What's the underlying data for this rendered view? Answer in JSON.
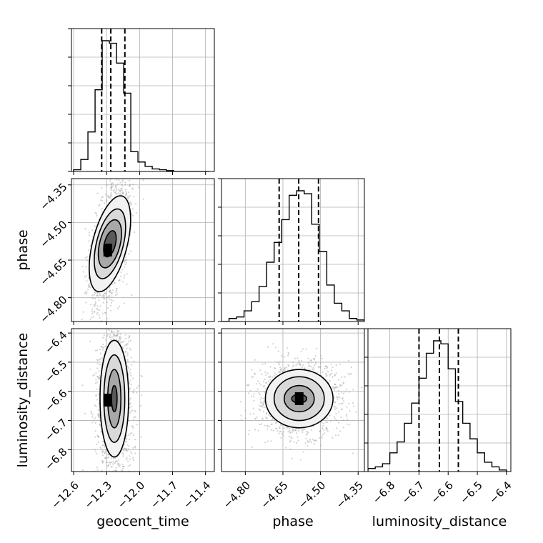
{
  "chart_data": {
    "type": "corner",
    "parameters": [
      "geocent_time",
      "phase",
      "luminosity_distance"
    ],
    "xlabels": [
      "geocent_time",
      "phase",
      "luminosity_distance"
    ],
    "ylabels": [
      "",
      "phase",
      "luminosity_distance"
    ],
    "ranges": [
      [
        -12.62,
        -11.32
      ],
      [
        -4.895,
        -4.325
      ],
      [
        -6.875,
        -6.385
      ]
    ],
    "ticks": [
      [
        -12.6,
        -12.3,
        -12.0,
        -11.7,
        -11.4
      ],
      [
        -4.8,
        -4.65,
        -4.5,
        -4.35
      ],
      [
        -6.8,
        -6.7,
        -6.6,
        -6.5,
        -6.4
      ]
    ],
    "tick_labels": [
      [
        "−12.6",
        "−12.3",
        "−12.0",
        "−11.7",
        "−11.4"
      ],
      [
        "−4.80",
        "−4.65",
        "−4.50",
        "−4.35"
      ],
      [
        "−6.8",
        "−6.7",
        "−6.6",
        "−6.5",
        "−6.4"
      ]
    ],
    "histograms": [
      {
        "parameter": "geocent_time",
        "bin_edges": [
          -12.6,
          -12.535,
          -12.47,
          -12.405,
          -12.34,
          -12.275,
          -12.21,
          -12.145,
          -12.08,
          -12.015,
          -11.95,
          -11.885,
          -11.82,
          -11.755,
          -11.69,
          -11.625,
          -11.56,
          -11.495,
          -11.43,
          -11.365
        ],
        "counts": [
          2,
          14,
          46,
          95,
          152,
          149,
          126,
          91,
          23,
          11,
          6,
          3,
          2,
          1,
          0,
          0,
          0,
          0,
          0
        ],
        "quantiles": [
          -12.345,
          -12.262,
          -12.134
        ]
      },
      {
        "parameter": "phase",
        "bin_edges": [
          -4.895,
          -4.865,
          -4.835,
          -4.805,
          -4.775,
          -4.745,
          -4.715,
          -4.685,
          -4.655,
          -4.625,
          -4.595,
          -4.565,
          -4.535,
          -4.505,
          -4.475,
          -4.445,
          -4.415,
          -4.385,
          -4.355,
          -4.325
        ],
        "counts": [
          0,
          2,
          3,
          7,
          13,
          23,
          39,
          52,
          67,
          83,
          86,
          84,
          64,
          46,
          24,
          12,
          7,
          2,
          1
        ],
        "quantiles": [
          -4.665,
          -4.587,
          -4.508
        ]
      },
      {
        "parameter": "luminosity_distance",
        "bin_edges": [
          -6.875,
          -6.85,
          -6.825,
          -6.8,
          -6.775,
          -6.75,
          -6.725,
          -6.7,
          -6.675,
          -6.65,
          -6.625,
          -6.6,
          -6.575,
          -6.55,
          -6.525,
          -6.5,
          -6.475,
          -6.45,
          -6.425,
          -6.4
        ],
        "counts": [
          2,
          3,
          5,
          12,
          19,
          31,
          44,
          60,
          76,
          84,
          82,
          66,
          45,
          31,
          21,
          12,
          6,
          3,
          1
        ],
        "quantiles": [
          -6.7,
          -6.63,
          -6.565
        ]
      }
    ],
    "density_panels": [
      {
        "x": "geocent_time",
        "y": "phase",
        "center": [
          -12.27,
          -4.585
        ],
        "contour_levels": [
          {
            "semi_axes": [
              0.06,
              0.035
            ],
            "angle_deg": 60
          },
          {
            "semi_axes": [
              0.11,
              0.065
            ],
            "angle_deg": 60
          },
          {
            "semi_axes": [
              0.16,
              0.085
            ],
            "angle_deg": 60
          },
          {
            "semi_axes": [
              0.22,
              0.11
            ],
            "angle_deg": 60
          }
        ],
        "peak": [
          -12.29,
          -4.61
        ]
      },
      {
        "x": "geocent_time",
        "y": "luminosity_distance",
        "center": [
          -12.23,
          -6.625
        ],
        "contour_levels": [
          {
            "semi_axes": [
              0.045,
              0.025
            ],
            "angle_deg": 90
          },
          {
            "semi_axes": [
              0.1,
              0.06
            ],
            "angle_deg": 90
          },
          {
            "semi_axes": [
              0.15,
              0.095
            ],
            "angle_deg": 90
          },
          {
            "semi_axes": [
              0.2,
              0.13
            ],
            "angle_deg": 90
          }
        ],
        "peak": [
          -12.29,
          -6.63
        ]
      },
      {
        "x": "phase",
        "y": "luminosity_distance",
        "center": [
          -4.585,
          -6.625
        ],
        "contour_levels": [
          {
            "semi_axes": [
              0.03,
              0.015
            ],
            "angle_deg": 0
          },
          {
            "semi_axes": [
              0.06,
              0.045
            ],
            "angle_deg": 0
          },
          {
            "semi_axes": [
              0.1,
              0.075
            ],
            "angle_deg": 0
          },
          {
            "semi_axes": [
              0.135,
              0.1
            ],
            "angle_deg": 0
          }
        ],
        "peak": [
          -4.585,
          -6.625
        ]
      }
    ],
    "grid": true,
    "colors": {
      "contour": "#000000",
      "scatter": "#9e9e9e",
      "grid": "#b0b0b0"
    }
  }
}
